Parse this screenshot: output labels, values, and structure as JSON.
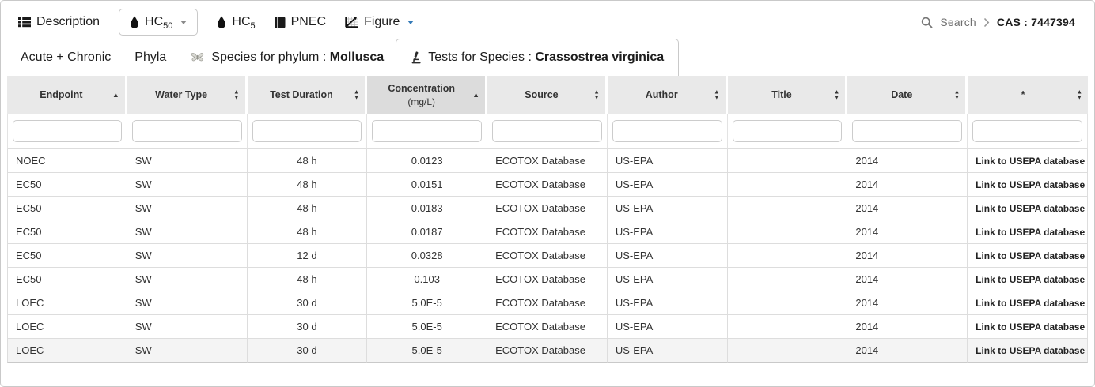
{
  "topnav": {
    "description": "Description",
    "hc50_main": "HC",
    "hc50_sub": "50",
    "hc5_main": "HC",
    "hc5_sub": "5",
    "pnec": "PNEC",
    "figure": "Figure",
    "search": "Search",
    "cas": "CAS : 7447394"
  },
  "subtabs": {
    "acute_chronic": "Acute + Chronic",
    "phyla": "Phyla",
    "species_prefix": "Species for phylum :",
    "species_value": "Mollusca",
    "tests_prefix": "Tests for Species :",
    "tests_value": "Crassostrea virginica"
  },
  "table": {
    "columns": [
      {
        "label": "Endpoint",
        "sort": "asc"
      },
      {
        "label": "Water Type",
        "sort": "both"
      },
      {
        "label": "Test Duration",
        "sort": "both"
      },
      {
        "label": "Concentration",
        "label2": "(mg/L)",
        "sort": "asc",
        "highlight": true
      },
      {
        "label": "Source",
        "sort": "both"
      },
      {
        "label": "Author",
        "sort": "both"
      },
      {
        "label": "Title",
        "sort": "both"
      },
      {
        "label": "Date",
        "sort": "both"
      },
      {
        "label": "*",
        "sort": "both"
      }
    ],
    "rows": [
      [
        "NOEC",
        "SW",
        "48 h",
        "0.0123",
        "ECOTOX Database",
        "US-EPA",
        "",
        "2014",
        "Link to USEPA database"
      ],
      [
        "EC50",
        "SW",
        "48 h",
        "0.0151",
        "ECOTOX Database",
        "US-EPA",
        "",
        "2014",
        "Link to USEPA database"
      ],
      [
        "EC50",
        "SW",
        "48 h",
        "0.0183",
        "ECOTOX Database",
        "US-EPA",
        "",
        "2014",
        "Link to USEPA database"
      ],
      [
        "EC50",
        "SW",
        "48 h",
        "0.0187",
        "ECOTOX Database",
        "US-EPA",
        "",
        "2014",
        "Link to USEPA database"
      ],
      [
        "EC50",
        "SW",
        "12 d",
        "0.0328",
        "ECOTOX Database",
        "US-EPA",
        "",
        "2014",
        "Link to USEPA database"
      ],
      [
        "EC50",
        "SW",
        "48 h",
        "0.103",
        "ECOTOX Database",
        "US-EPA",
        "",
        "2014",
        "Link to USEPA database"
      ],
      [
        "LOEC",
        "SW",
        "30 d",
        "5.0E-5",
        "ECOTOX Database",
        "US-EPA",
        "",
        "2014",
        "Link to USEPA database"
      ],
      [
        "LOEC",
        "SW",
        "30 d",
        "5.0E-5",
        "ECOTOX Database",
        "US-EPA",
        "",
        "2014",
        "Link to USEPA database"
      ],
      [
        "LOEC",
        "SW",
        "30 d",
        "5.0E-5",
        "ECOTOX Database",
        "US-EPA",
        "",
        "2014",
        "Link to USEPA database"
      ]
    ]
  }
}
